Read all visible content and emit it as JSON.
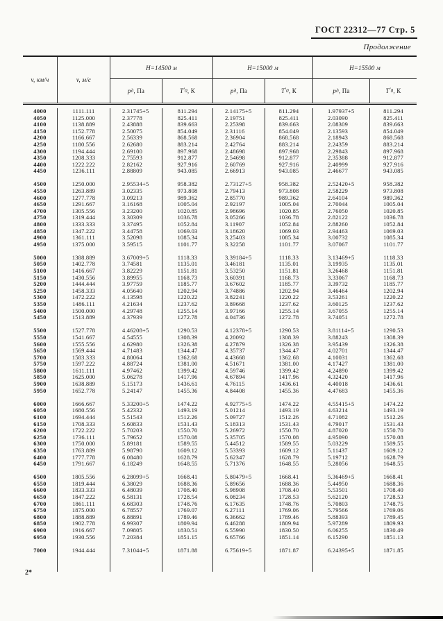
{
  "page": {
    "header_title": "ГОСТ 22312—77 Стр. 5",
    "continuation_label": "Продолжение",
    "footer_mark": "2*"
  },
  "table": {
    "col1_header": "v, км/ч",
    "col2_header": "v, м/с",
    "groups": [
      {
        "label": "H=14500 м"
      },
      {
        "label": "H=15000 м"
      },
      {
        "label": "H=15500 м"
      }
    ],
    "sub_headers": {
      "pressure": {
        "symbol": "p",
        "subscript": "д",
        "unit": ", Па"
      },
      "temperature": {
        "symbol": "T",
        "prime": "′",
        "subscript": "0",
        "unit": ", К"
      }
    },
    "blocks": [
      {
        "rows": [
          [
            "4000",
            "1111.111",
            "2.31745+5",
            "811.294",
            "2.14175+5",
            "811.294",
            "1.97937+5",
            "811.294"
          ],
          [
            "4050",
            "1125.000",
            "2.37778",
            "825.411",
            "2.19751",
            "825.411",
            "2.03090",
            "825.411"
          ],
          [
            "4100",
            "1138.889",
            "2.43888",
            "839.663",
            "2.25398",
            "839.663",
            "2.08309",
            "839.663"
          ],
          [
            "4150",
            "1152.778",
            "2.50075",
            "854.049",
            "2.31116",
            "854.049",
            "2.13593",
            "854.049"
          ],
          [
            "4200",
            "1166.667",
            "2.56339",
            "868.568",
            "2.36904",
            "868.568",
            "2.18943",
            "868.568"
          ],
          [
            "4250",
            "1180.556",
            "2.62680",
            "883.214",
            "2.42764",
            "883.214",
            "2.24359",
            "883.214"
          ],
          [
            "4300",
            "1194.444",
            "2.69100",
            "897.968",
            "2.48698",
            "897.968",
            "2.29843",
            "897.968"
          ],
          [
            "4350",
            "1208.333",
            "2.75593",
            "912.877",
            "2.54698",
            "912.877",
            "2.35388",
            "912.877"
          ],
          [
            "4400",
            "1222.222",
            "2.82162",
            "927.916",
            "2.60769",
            "927.916",
            "2.40999",
            "927.916"
          ],
          [
            "4450",
            "1236.111",
            "2.88809",
            "943.085",
            "2.66913",
            "943.085",
            "2.46677",
            "943.085"
          ]
        ]
      },
      {
        "rows": [
          [
            "4500",
            "1250.000",
            "2.95534+5",
            "958.382",
            "2.73127+5",
            "958.382",
            "2.52420+5",
            "958.382"
          ],
          [
            "4550",
            "1263.889",
            "3.02335",
            "973.808",
            "2.79413",
            "973.808",
            "2.58229",
            "973.808"
          ],
          [
            "4600",
            "1277.778",
            "3.09213",
            "989.362",
            "2.85770",
            "989.362",
            "2.64104",
            "989.362"
          ],
          [
            "4650",
            "1291.667",
            "3.16168",
            "1005.04",
            "2.92197",
            "1005.04",
            "2.70044",
            "1005.04"
          ],
          [
            "4700",
            "1305.556",
            "3.23200",
            "1020.85",
            "2.98696",
            "1020.85",
            "2.76050",
            "1020.85"
          ],
          [
            "4750",
            "1319.444",
            "3.30309",
            "1036.78",
            "3.05266",
            "1036.78",
            "2.82122",
            "1036.78"
          ],
          [
            "4800",
            "1333.333",
            "3.37495",
            "1052.84",
            "3.11907",
            "1052.84",
            "2.88260",
            "1052.84"
          ],
          [
            "4850",
            "1347.222",
            "3.44758",
            "1069.03",
            "3.18620",
            "1069.03",
            "2.94463",
            "1069.03"
          ],
          [
            "4900",
            "1361.111",
            "3.52098",
            "1085.34",
            "3.25403",
            "1085.34",
            "3.00732",
            "1085.34"
          ],
          [
            "4950",
            "1375.000",
            "3.59515",
            "1101.77",
            "3.32258",
            "1101.77",
            "3.07067",
            "1101.77"
          ]
        ]
      },
      {
        "rows": [
          [
            "5000",
            "1388.889",
            "3.67009+5",
            "1118.33",
            "3.39184+5",
            "1118.33",
            "3.13469+5",
            "1118.33"
          ],
          [
            "5050",
            "1402.778",
            "3.74581",
            "1135.01",
            "3.46181",
            "1135.01",
            "3.19935",
            "1135.01"
          ],
          [
            "5100",
            "1416.667",
            "3.82229",
            "1151.81",
            "3.53250",
            "1151.81",
            "3.26468",
            "1151.81"
          ],
          [
            "5150",
            "1430.556",
            "3.89955",
            "1168.73",
            "3.60391",
            "1168.73",
            "3.33067",
            "1168.73"
          ],
          [
            "5200",
            "1444.444",
            "3.97759",
            "1185.77",
            "3.67602",
            "1185.77",
            "3.39732",
            "1185.77"
          ],
          [
            "5250",
            "1458.333",
            "4.05640",
            "1202.94",
            "3.74886",
            "1202.94",
            "3.46464",
            "1202.94"
          ],
          [
            "5300",
            "1472.222",
            "4.13598",
            "1220.22",
            "3.82241",
            "1220.22",
            "3.53261",
            "1220.22"
          ],
          [
            "5350",
            "1486.111",
            "4.21634",
            "1237.62",
            "3.89668",
            "1237.62",
            "3.60125",
            "1237.62"
          ],
          [
            "5400",
            "1500.000",
            "4.29748",
            "1255.14",
            "3.97166",
            "1255.14",
            "3.67055",
            "1255.14"
          ],
          [
            "5450",
            "1513.889",
            "4.37939",
            "1272.78",
            "4.04736",
            "1272.78",
            "3.74051",
            "1272.78"
          ]
        ]
      },
      {
        "rows": [
          [
            "5500",
            "1527.778",
            "4.46208+5",
            "1290.53",
            "4.12378+5",
            "1290.53",
            "3.81114+5",
            "1290.53"
          ],
          [
            "5550",
            "1541.667",
            "4.54555",
            "1308.39",
            "4.20092",
            "1308.39",
            "3.88243",
            "1308.39"
          ],
          [
            "5600",
            "1555.556",
            "4.62980",
            "1326.38",
            "4.27879",
            "1326.38",
            "3.95439",
            "1326.38"
          ],
          [
            "5650",
            "1569.444",
            "4.71483",
            "1344.47",
            "4.35737",
            "1344.47",
            "4.02701",
            "1344.47"
          ],
          [
            "5700",
            "1583.333",
            "4.80064",
            "1362.68",
            "4.43668",
            "1362.68",
            "4.10031",
            "1362.68"
          ],
          [
            "5750",
            "1597.222",
            "4.88724",
            "1381.00",
            "4.51671",
            "1381.00",
            "4.17427",
            "1381.00"
          ],
          [
            "5800",
            "1611.111",
            "4.97462",
            "1399.42",
            "4.59746",
            "1399.42",
            "4.24890",
            "1399.42"
          ],
          [
            "5850",
            "1625.000",
            "5.06278",
            "1417.96",
            "4.67894",
            "1417.96",
            "4.32420",
            "1417.96"
          ],
          [
            "5900",
            "1638.889",
            "5.15173",
            "1436.61",
            "4.76115",
            "1436.61",
            "4.40018",
            "1436.61"
          ],
          [
            "5950",
            "1652.778",
            "5.24147",
            "1455.36",
            "4.84408",
            "1455.36",
            "4.47683",
            "1455.36"
          ]
        ]
      },
      {
        "rows": [
          [
            "6000",
            "1666.667",
            "5.33200+5",
            "1474.22",
            "4.92775+5",
            "1474.22",
            "4.55415+5",
            "1474.22"
          ],
          [
            "6050",
            "1680.556",
            "5.42332",
            "1493.19",
            "5.01214",
            "1493.19",
            "4.63214",
            "1493.19"
          ],
          [
            "6100",
            "1694.444",
            "5.51543",
            "1512.26",
            "5.09727",
            "1512.26",
            "4.71082",
            "1512.26"
          ],
          [
            "6150",
            "1708.333",
            "5.60833",
            "1531.43",
            "5.18313",
            "1531.43",
            "4.79017",
            "1531.43"
          ],
          [
            "6200",
            "1722.222",
            "5.70203",
            "1550.70",
            "5.26972",
            "1550.70",
            "4.87020",
            "1550.70"
          ],
          [
            "6250",
            "1736.111",
            "5.79652",
            "1570.08",
            "5.35705",
            "1570.08",
            "4.95090",
            "1570.08"
          ],
          [
            "6300",
            "1750.000",
            "5.89181",
            "1589.55",
            "5.44512",
            "1589.55",
            "5.03229",
            "1589.55"
          ],
          [
            "6350",
            "1763.889",
            "5.98790",
            "1609.12",
            "5.53393",
            "1609.12",
            "5.11437",
            "1609.12"
          ],
          [
            "6400",
            "1777.778",
            "6.08480",
            "1628.79",
            "5.62347",
            "1628.79",
            "5.19712",
            "1628.79"
          ],
          [
            "6450",
            "1791.667",
            "6.18249",
            "1648.55",
            "5.71376",
            "1648.55",
            "5.28056",
            "1648.55"
          ]
        ]
      },
      {
        "rows": [
          [
            "6500",
            "1805.556",
            "6.28099+5",
            "1668.41",
            "5.80479+5",
            "1668.41",
            "5.36469+5",
            "1668.41"
          ],
          [
            "6550",
            "1819.444",
            "6.38029",
            "1688.36",
            "5.89656",
            "1688.36",
            "5.44950",
            "1688.36"
          ],
          [
            "6600",
            "1833.333",
            "6.48039",
            "1708.40",
            "5.98908",
            "1708.40",
            "5.53501",
            "1708.40"
          ],
          [
            "6650",
            "1847.222",
            "6.58131",
            "1728.54",
            "6.08234",
            "1728.53",
            "5.62120",
            "1728.53"
          ],
          [
            "6700",
            "1861.111",
            "6.68303",
            "1748.76",
            "6.17635",
            "1748.76",
            "5.70803",
            "1748.75"
          ],
          [
            "6750",
            "1875.000",
            "6.78557",
            "1769.07",
            "6.27111",
            "1769.06",
            "5.79566",
            "1769.06"
          ],
          [
            "6800",
            "1888.889",
            "6.88891",
            "1789.46",
            "6.36662",
            "1789.46",
            "5.88393",
            "1789.45"
          ],
          [
            "6850",
            "1902.778",
            "6.99307",
            "1809.94",
            "6.46288",
            "1809.94",
            "5.97289",
            "1809.93"
          ],
          [
            "6900",
            "1916.667",
            "7.09805",
            "1830.51",
            "6.55990",
            "1830.50",
            "6.06255",
            "1830.49"
          ],
          [
            "6950",
            "1930.556",
            "7.20384",
            "1851.15",
            "6.65766",
            "1851.14",
            "6.15290",
            "1851.13"
          ]
        ]
      },
      {
        "rows": [
          [
            "7000",
            "1944.444",
            "7.31044+5",
            "1871.88",
            "6.75619+5",
            "1871.87",
            "6.24395+5",
            "1871.85"
          ]
        ]
      }
    ]
  }
}
